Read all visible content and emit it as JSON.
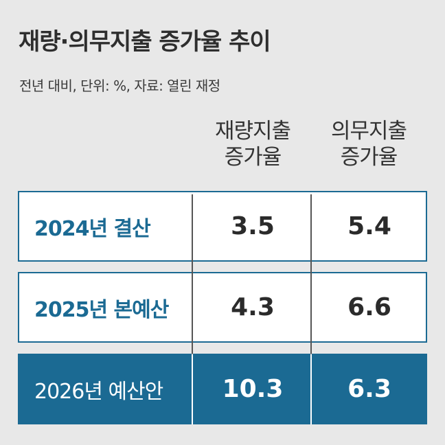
{
  "title": "재량·의무지출 증가율 추이",
  "subtitle": "전년 대비, 단위: %, 자료: 열린 재정",
  "chart_data": {
    "type": "table",
    "title": "재량·의무지출 증가율 추이",
    "subtitle": "전년 대비, 단위: %, 자료: 열린 재정",
    "columns": [
      {
        "line1": "재량지출",
        "line2": "증가율"
      },
      {
        "line1": "의무지출",
        "line2": "증가율"
      }
    ],
    "rows": [
      {
        "label": "2024년 결산",
        "values": [
          "3.5",
          "5.4"
        ]
      },
      {
        "label": "2025년 본예산",
        "values": [
          "4.3",
          "6.6"
        ]
      },
      {
        "label": "2026년 예산안",
        "values": [
          "10.3",
          "6.3"
        ]
      }
    ],
    "highlight_row": 2,
    "colors": {
      "accent": "#1b6a93",
      "background": "#e8e8e8",
      "row_background": "#ffffff",
      "highlight_text": "#ffffff"
    }
  }
}
